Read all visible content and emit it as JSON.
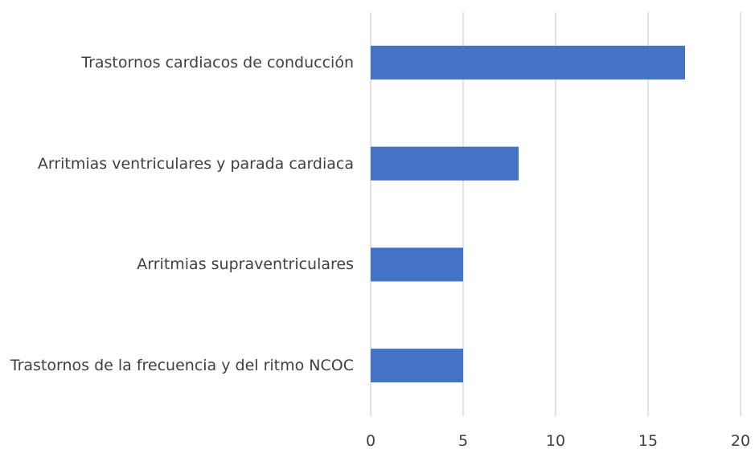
{
  "chart_data": {
    "type": "bar",
    "orientation": "horizontal",
    "categories": [
      "Trastornos cardiacos de conducción",
      "Arritmias ventriculares y parada cardiaca",
      "Arritmias supraventriculares",
      "Trastornos de la frecuencia y del ritmo NCOC"
    ],
    "values": [
      17,
      8,
      5,
      5
    ],
    "color": "#4472c4",
    "xlim": [
      0,
      20
    ],
    "xticks": [
      0,
      5,
      10,
      15,
      20
    ],
    "grid": true
  }
}
